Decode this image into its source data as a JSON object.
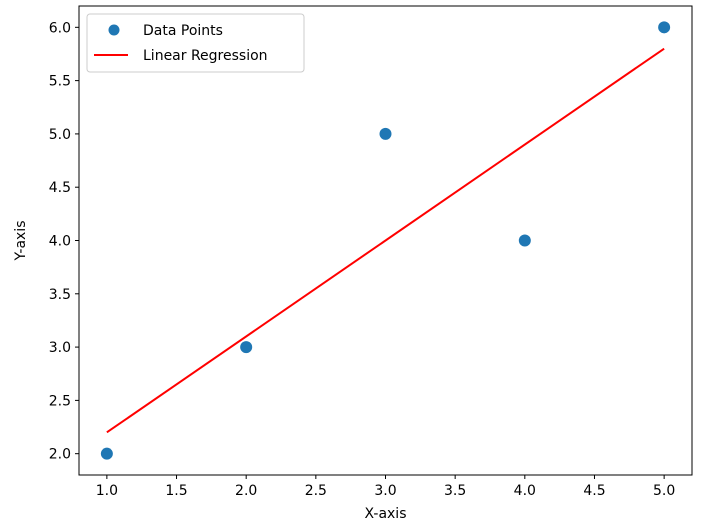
{
  "chart_data": {
    "type": "scatter",
    "xlabel": "X-axis",
    "ylabel": "Y-axis",
    "xlim": [
      0.8,
      5.2
    ],
    "ylim": [
      1.8,
      6.2
    ],
    "x_ticks": [
      "1.0",
      "1.5",
      "2.0",
      "2.5",
      "3.0",
      "3.5",
      "4.0",
      "4.5",
      "5.0"
    ],
    "y_ticks": [
      "2.0",
      "2.5",
      "3.0",
      "3.5",
      "4.0",
      "4.5",
      "5.0",
      "5.5",
      "6.0"
    ],
    "grid": false,
    "legend_position": "upper-left",
    "series": [
      {
        "name": "Data Points",
        "kind": "scatter",
        "color": "#1f77b4",
        "x": [
          1,
          2,
          3,
          4,
          5
        ],
        "y": [
          2,
          3,
          5,
          4,
          6
        ]
      },
      {
        "name": "Linear Regression",
        "kind": "line",
        "color": "#ff0000",
        "x": [
          1,
          5
        ],
        "y": [
          2.2,
          5.8
        ]
      }
    ]
  }
}
